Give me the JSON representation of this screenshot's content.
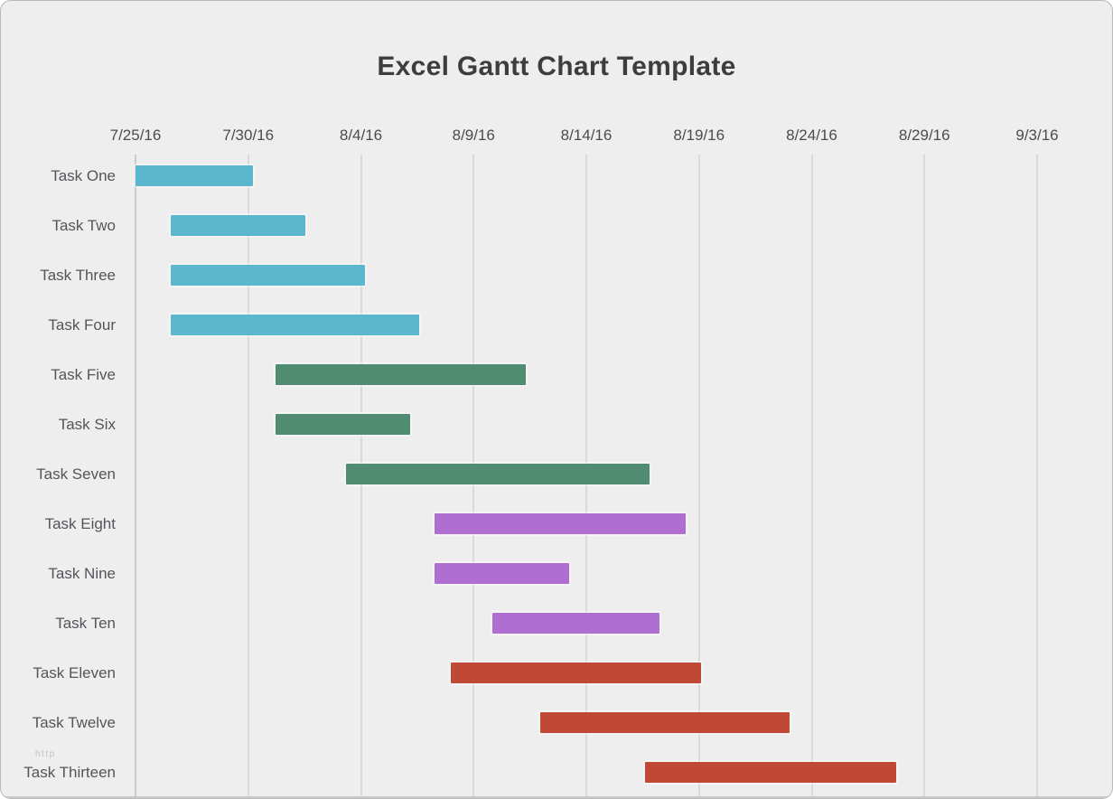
{
  "title": "Excel Gantt Chart Template",
  "watermark": "http",
  "chart_data": {
    "type": "gantt",
    "title": "Excel Gantt Chart Template",
    "x_axis": {
      "tick_labels": [
        "7/25/16",
        "7/30/16",
        "8/4/16",
        "8/9/16",
        "8/14/16",
        "8/19/16",
        "8/24/16",
        "8/29/16",
        "9/3/16"
      ],
      "tick_day_offsets": [
        0,
        5,
        10,
        15,
        20,
        25,
        30,
        35,
        40
      ],
      "xlim_days": [
        0,
        43.3
      ],
      "grid": true,
      "axis_origin_date": "7/25/16"
    },
    "tasks": [
      {
        "label": "Task One",
        "start_day": 0,
        "end_day": 5.2,
        "start_date": "7/25/16",
        "end_date": "7/30/16",
        "color": "#5cb6ce"
      },
      {
        "label": "Task Two",
        "start_day": 1.55,
        "end_day": 7.55,
        "start_date": "7/27/16",
        "end_date": "8/2/16",
        "color": "#5cb6ce"
      },
      {
        "label": "Task Three",
        "start_day": 1.55,
        "end_day": 10.2,
        "start_date": "7/27/16",
        "end_date": "8/4/16",
        "color": "#5cb6ce"
      },
      {
        "label": "Task Four",
        "start_day": 1.55,
        "end_day": 12.6,
        "start_date": "7/27/16",
        "end_date": "8/7/16",
        "color": "#5cb6ce"
      },
      {
        "label": "Task Five",
        "start_day": 6.2,
        "end_day": 17.3,
        "start_date": "7/31/16",
        "end_date": "8/11/16",
        "color": "#4f8c72"
      },
      {
        "label": "Task Six",
        "start_day": 6.2,
        "end_day": 12.2,
        "start_date": "7/31/16",
        "end_date": "8/6/16",
        "color": "#4f8c72"
      },
      {
        "label": "Task Seven",
        "start_day": 9.35,
        "end_day": 22.8,
        "start_date": "8/3/16",
        "end_date": "8/17/16",
        "color": "#4f8c72"
      },
      {
        "label": "Task Eight",
        "start_day": 13.25,
        "end_day": 24.4,
        "start_date": "8/7/16",
        "end_date": "8/18/16",
        "color": "#b06ed2"
      },
      {
        "label": "Task Nine",
        "start_day": 13.25,
        "end_day": 19.25,
        "start_date": "8/7/16",
        "end_date": "8/13/16",
        "color": "#b06ed2"
      },
      {
        "label": "Task Ten",
        "start_day": 15.85,
        "end_day": 23.25,
        "start_date": "8/10/16",
        "end_date": "8/17/16",
        "color": "#b06ed2"
      },
      {
        "label": "Task Eleven",
        "start_day": 14.0,
        "end_day": 25.1,
        "start_date": "8/8/16",
        "end_date": "8/19/16",
        "color": "#c04936"
      },
      {
        "label": "Task Twelve",
        "start_day": 17.95,
        "end_day": 29.0,
        "start_date": "8/12/16",
        "end_date": "8/23/16",
        "color": "#c04936"
      },
      {
        "label": "Task Thirteen",
        "start_day": 22.6,
        "end_day": 33.75,
        "start_date": "8/17/16",
        "end_date": "8/28/16",
        "color": "#c04936"
      }
    ],
    "colors": {
      "blue": "#5cb6ce",
      "green": "#4f8c72",
      "purple": "#b06ed2",
      "red": "#c04936",
      "background": "#eeeeee",
      "gridline": "#dadada",
      "axis_line": "#c9c9c9",
      "title_text": "#3d3d3f",
      "label_text": "#54555a"
    },
    "legend": null
  }
}
